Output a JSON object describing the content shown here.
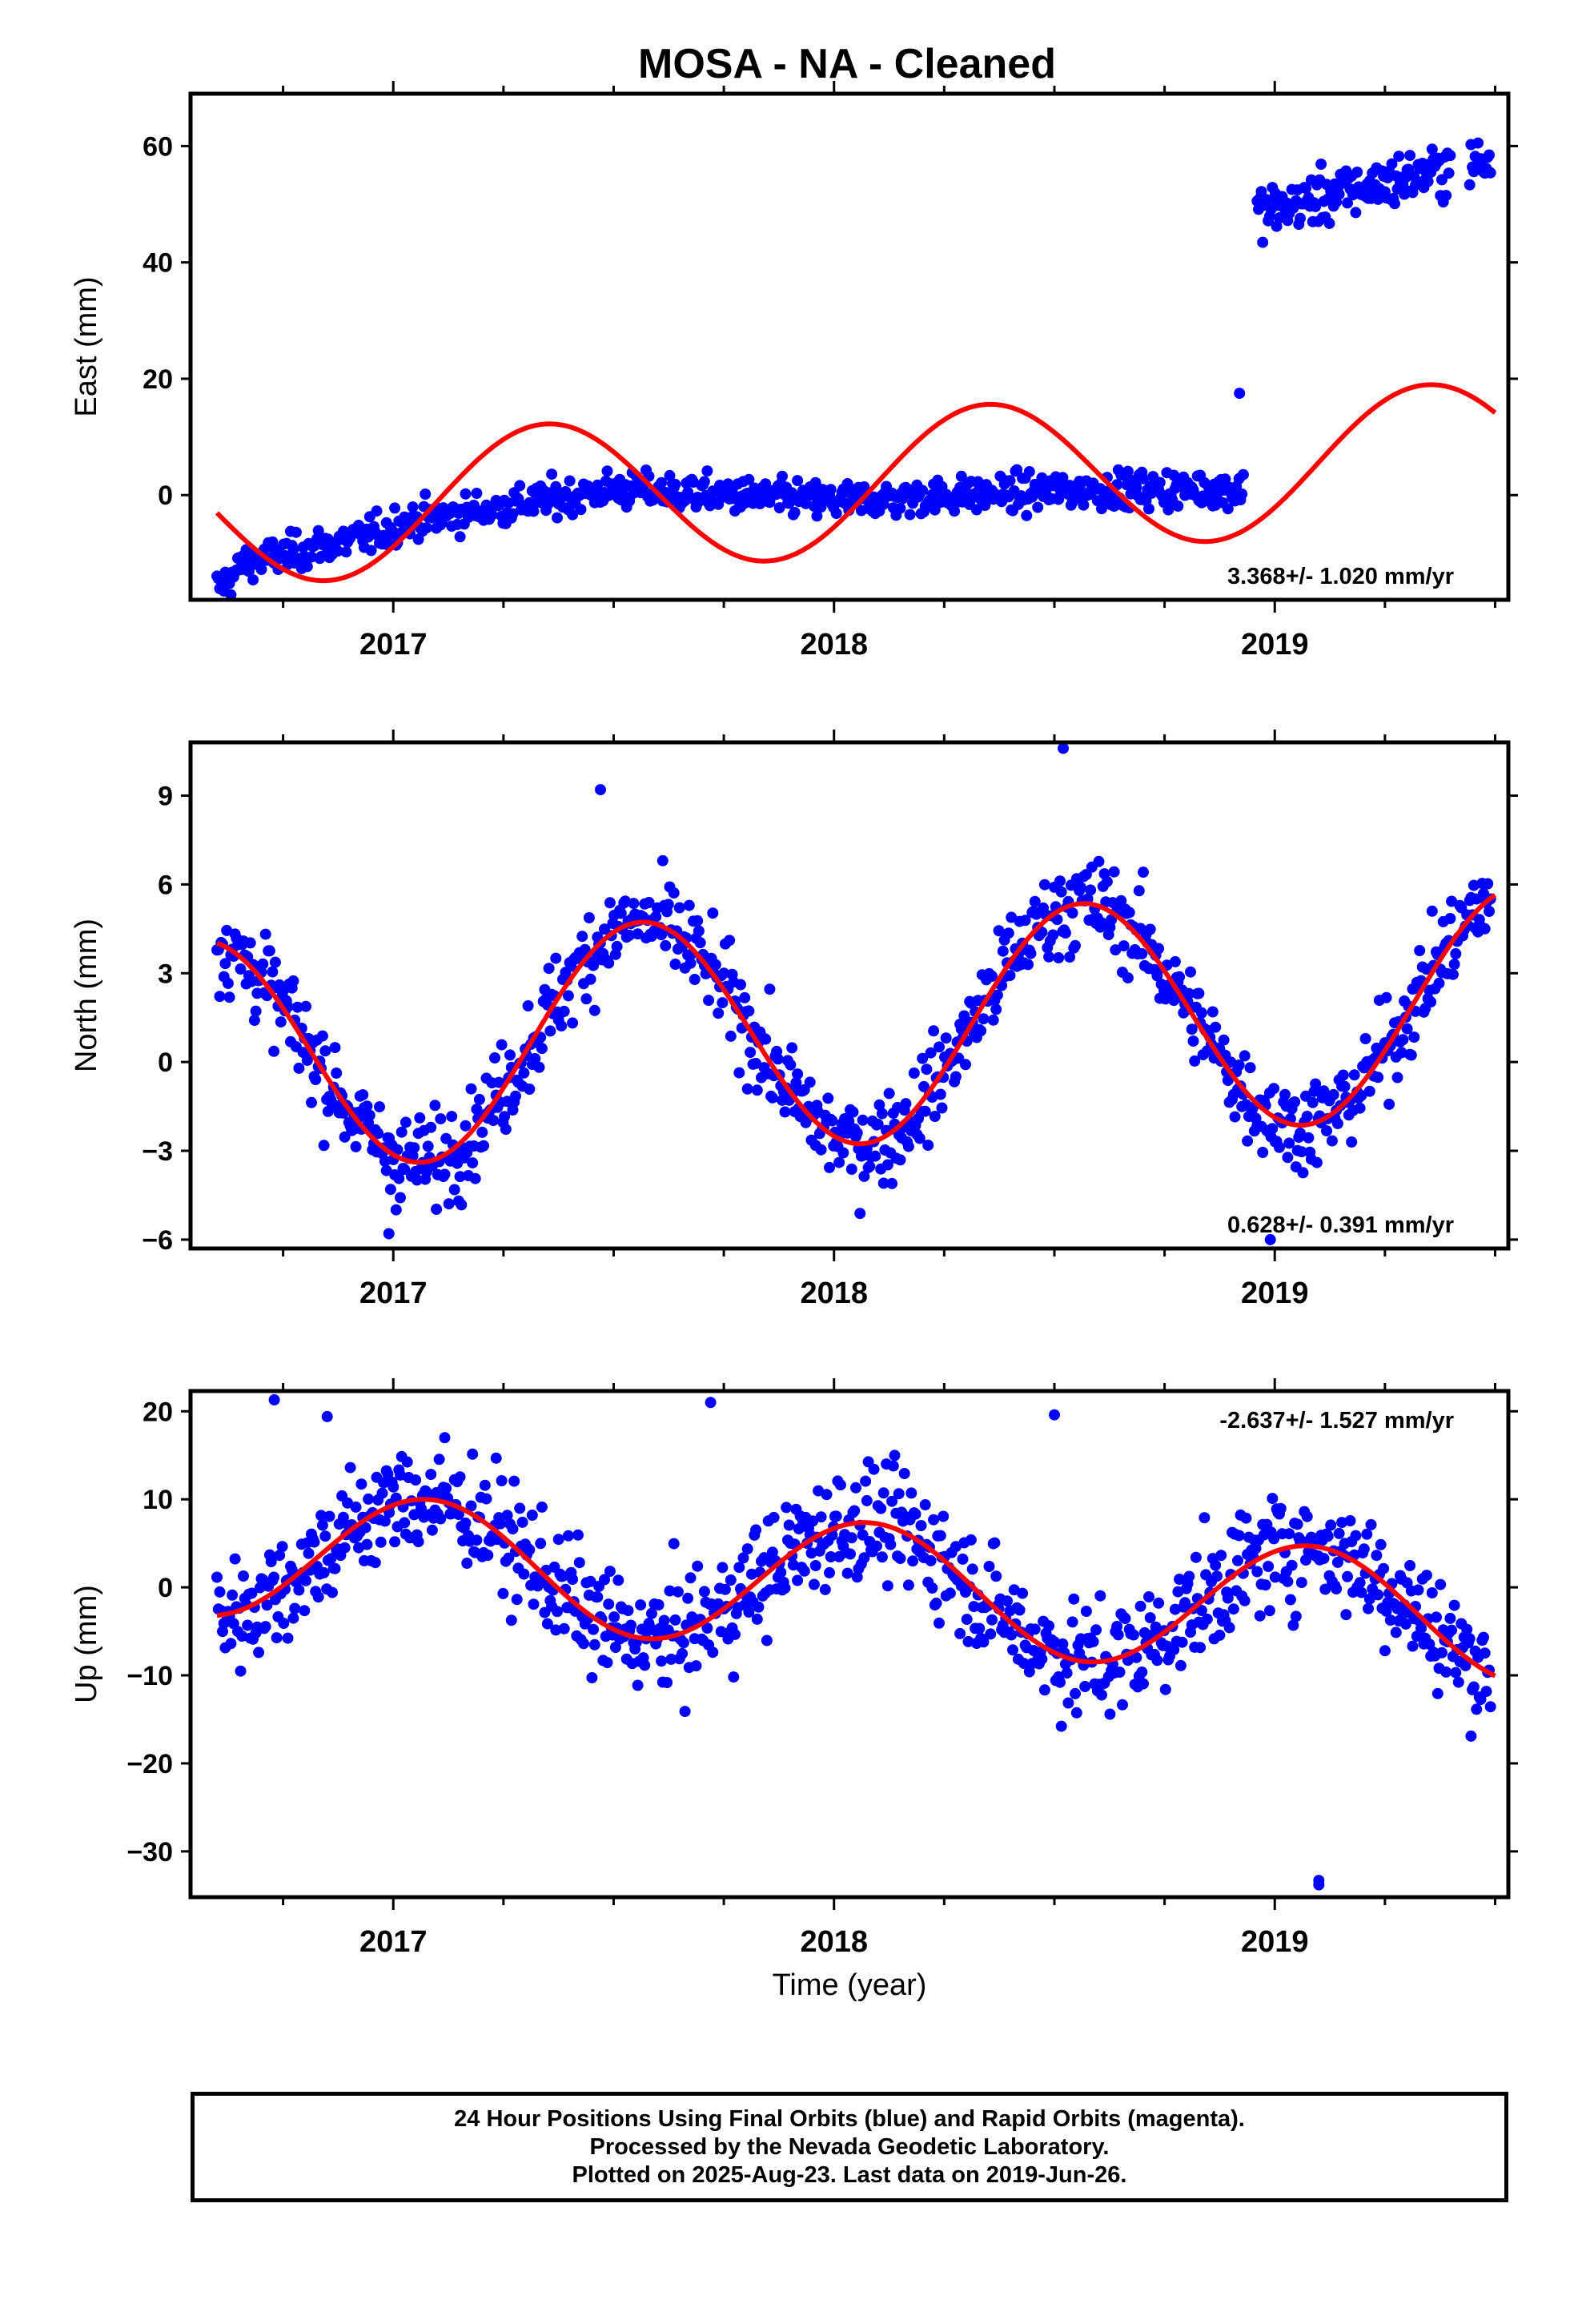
{
  "title": "MOSA  - NA - Cleaned",
  "footer": {
    "line1": "24 Hour Positions Using Final Orbits (blue) and Rapid Orbits (magenta).",
    "line2": "Processed by the Nevada Geodetic Laboratory.",
    "line3": "Plotted on 2025-Aug-23. Last data on 2019-Jun-26."
  },
  "colors": {
    "data": "#0000ff",
    "model": "#ff0000",
    "axes": "#000000"
  },
  "chart_data": [
    {
      "type": "scatter",
      "ylabel": "East (mm)",
      "xlabel": "",
      "xlim": [
        2016.54,
        2019.53
      ],
      "ylim": [
        -18,
        69
      ],
      "x_ticks": [
        "2017",
        "2018",
        "2019"
      ],
      "y_ticks": [
        0,
        20,
        40,
        60
      ],
      "rate_label": "3.368+/- 1.020 mm/yr",
      "rate_position": "bottom-right",
      "series": [
        {
          "kind": "points",
          "segments": [
            {
              "x0": 2016.6,
              "x1": 2016.65,
              "y0": -16,
              "y1": -13
            },
            {
              "x0": 2016.65,
              "x1": 2017.0,
              "y0": -12,
              "y1": -6
            },
            {
              "x0": 2017.0,
              "x1": 2017.5,
              "y0": -5,
              "y1": 1
            },
            {
              "x0": 2017.5,
              "x1": 2018.0,
              "y0": 1,
              "y1": -1
            },
            {
              "x0": 2018.0,
              "x1": 2018.6,
              "y0": -1,
              "y1": 1
            },
            {
              "x0": 2018.6,
              "x1": 2018.93,
              "y0": 1,
              "y1": 1
            }
          ],
          "outliers": [
            [
              2018.92,
              17.5
            ]
          ],
          "after_jump": {
            "x0": 2018.93,
            "x1": 2019.5,
            "y0": 48,
            "y1": 58
          },
          "scatter_mm": 2.2
        },
        {
          "kind": "model",
          "rate_mm_per_yr": 3.368,
          "ref_year": 2018.0,
          "offset_mm": 1.8,
          "sin_mm": 10.3,
          "cos_mm": -7.3
        }
      ]
    },
    {
      "type": "scatter",
      "ylabel": "North (mm)",
      "xlabel": "",
      "xlim": [
        2016.54,
        2019.53
      ],
      "ylim": [
        -6.3,
        10.8
      ],
      "x_ticks": [
        "2017",
        "2018",
        "2019"
      ],
      "y_ticks": [
        -6,
        -3,
        0,
        3,
        6,
        9
      ],
      "rate_label": "0.628+/- 0.391 mm/yr",
      "rate_position": "bottom-right",
      "series": [
        {
          "kind": "points",
          "scatter_mm": 1.1,
          "outliers": [
            [
              2017.47,
              9.2
            ],
            [
              2018.52,
              10.6
            ],
            [
              2018.99,
              -6.0
            ],
            [
              2016.99,
              -5.8
            ]
          ]
        },
        {
          "kind": "model",
          "rate_mm_per_yr": 0.628,
          "ref_year": 2018.0,
          "offset_mm": 1.1,
          "sin_mm": -1.5,
          "cos_mm": -3.6
        }
      ]
    },
    {
      "type": "scatter",
      "ylabel": "Up (mm)",
      "xlabel": "Time (year)",
      "xlim": [
        2016.54,
        2019.53
      ],
      "ylim": [
        -35.2,
        22.3
      ],
      "x_ticks": [
        "2017",
        "2018",
        "2019"
      ],
      "y_ticks": [
        -30,
        -20,
        -10,
        0,
        10,
        20
      ],
      "rate_label": "-2.637+/- 1.527 mm/yr",
      "rate_position": "top-right",
      "series": [
        {
          "kind": "points",
          "scatter_mm": 4.6,
          "outliers": [
            [
              2016.73,
              21.3
            ],
            [
              2017.72,
              21.0
            ],
            [
              2018.5,
              19.6
            ],
            [
              2019.1,
              -33.8
            ],
            [
              2019.1,
              -33.3
            ],
            [
              2016.85,
              19.4
            ]
          ]
        },
        {
          "kind": "model",
          "rate_mm_per_yr": -2.637,
          "ref_year": 2018.0,
          "offset_mm": 0.3,
          "sin_mm": 3.4,
          "cos_mm": 6.4
        }
      ]
    }
  ]
}
